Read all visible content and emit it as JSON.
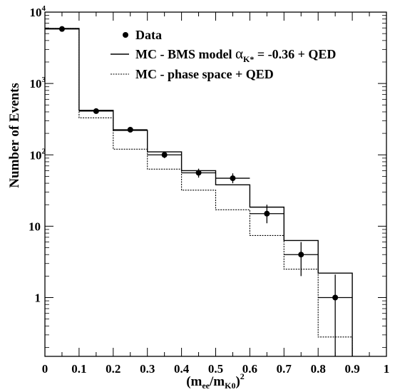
{
  "chart_data": {
    "type": "histogram",
    "yscale": "log",
    "xlim": [
      0,
      1
    ],
    "ylim": [
      0.15,
      10000
    ],
    "xlabel": "(m_ee/m_K0)^2",
    "ylabel": "Number of Events",
    "xticks": [
      "0",
      "0.1",
      "0.2",
      "0.3",
      "0.4",
      "0.5",
      "0.6",
      "0.7",
      "0.8",
      "0.9",
      "1"
    ],
    "yticks": [
      {
        "value": 1,
        "label": "1"
      },
      {
        "value": 10,
        "label": "10"
      },
      {
        "value": 100,
        "label": "10",
        "exp": "2"
      },
      {
        "value": 1000,
        "label": "10",
        "exp": "3"
      },
      {
        "value": 10000,
        "label": "10",
        "exp": "4"
      }
    ],
    "bin_edges": [
      0,
      0.1,
      0.2,
      0.3,
      0.4,
      0.5,
      0.6,
      0.7,
      0.8,
      0.9
    ],
    "series": [
      {
        "name": "Data",
        "kind": "points",
        "x": [
          0.05,
          0.15,
          0.25,
          0.35,
          0.45,
          0.55,
          0.65,
          0.75,
          0.85
        ],
        "y": [
          5800,
          410,
          225,
          100,
          56,
          47,
          15,
          4,
          1
        ],
        "err_low": [
          5700,
          390,
          210,
          90,
          48,
          40,
          11,
          2,
          0.15
        ],
        "err_high": [
          5900,
          430,
          240,
          110,
          64,
          55,
          20,
          6,
          2.1
        ]
      },
      {
        "name": "MC - BMS model",
        "kind": "step-solid",
        "values": [
          5900,
          420,
          220,
          110,
          60,
          38,
          18.5,
          6.3,
          2.2
        ]
      },
      {
        "name": "MC - phase space + QED",
        "kind": "step-dotted",
        "values": [
          5900,
          330,
          120,
          63,
          32,
          17,
          7.4,
          2.5,
          0.28
        ]
      }
    ],
    "legend": {
      "position": "top-right",
      "entries": [
        {
          "label": "Data",
          "marker": "dot"
        },
        {
          "label_main": "MC - BMS model ",
          "greek": "α",
          "sub": "K*",
          "label_rest": " = -0.36 + QED",
          "marker": "solid"
        },
        {
          "label": "MC - phase space + QED",
          "marker": "dotted"
        }
      ]
    }
  },
  "labels": {
    "ylabel": "Number of Events",
    "x_open": "(m",
    "x_sub1": "ee",
    "x_mid": "/m",
    "x_sub2": "K0",
    "x_close": ")",
    "x_exp": "2"
  }
}
